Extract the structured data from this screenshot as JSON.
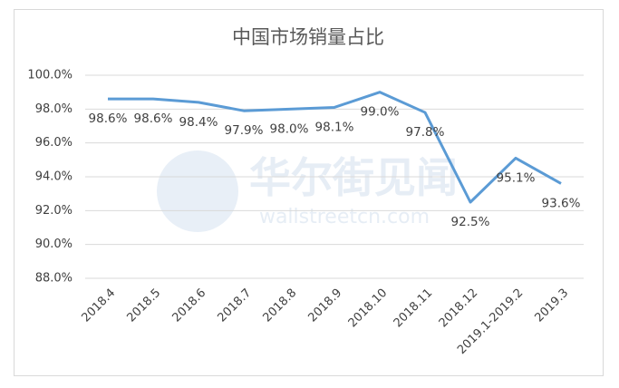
{
  "chart_data": {
    "type": "line",
    "title": "中国市场销量占比",
    "watermark": [
      "华尔街见闻",
      "wallstreetcn.com"
    ],
    "categories": [
      "2018.4",
      "2018.5",
      "2018.6",
      "2018.7",
      "2018.8",
      "2018.9",
      "2018.10",
      "2018.11",
      "2018.12",
      "2019.1-2019.2",
      "2019.3"
    ],
    "series": [
      {
        "name": "中国市场销量占比",
        "color": "#5b9bd5",
        "values": [
          98.6,
          98.6,
          98.4,
          97.9,
          98.0,
          98.1,
          99.0,
          97.8,
          92.5,
          95.1,
          93.6
        ],
        "value_labels": [
          "98.6%",
          "98.6%",
          "98.4%",
          "97.9%",
          "98.0%",
          "98.1%",
          "99.0%",
          "97.8%",
          "92.5%",
          "95.1%",
          "93.6%"
        ]
      }
    ],
    "ylim": [
      88,
      100
    ],
    "yticks": [
      {
        "value": 88,
        "label": "88.0%"
      },
      {
        "value": 90,
        "label": "90.0%"
      },
      {
        "value": 92,
        "label": "92.0%"
      },
      {
        "value": 94,
        "label": "94.0%"
      },
      {
        "value": 96,
        "label": "96.0%"
      },
      {
        "value": 98,
        "label": "98.0%"
      },
      {
        "value": 100,
        "label": "100.0%"
      }
    ],
    "grid": true
  }
}
